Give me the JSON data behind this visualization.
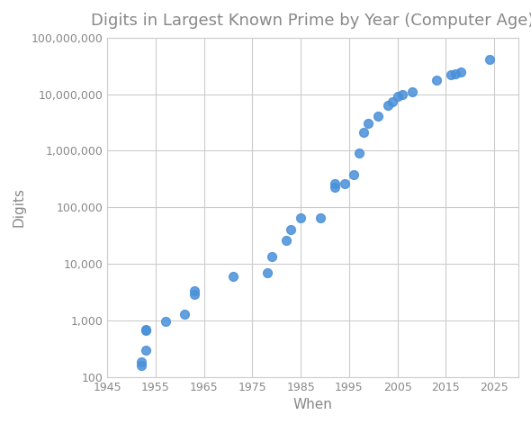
{
  "title": "Digits in Largest Known Prime by Year (Computer Age)",
  "xlabel": "When",
  "ylabel": "Digits",
  "background_color": "#ffffff",
  "grid_color": "#cccccc",
  "dot_color": "#4a90d9",
  "dot_size": 50,
  "xlim": [
    1945,
    2030
  ],
  "ylim_log": [
    100,
    100000000
  ],
  "xticks": [
    1945,
    1955,
    1965,
    1975,
    1985,
    1995,
    2005,
    2015,
    2025
  ],
  "yticks": [
    100,
    1000,
    10000,
    100000,
    1000000,
    10000000,
    100000000
  ],
  "ytick_labels": [
    "100",
    "1,000",
    "10,000",
    "100,000",
    "1,000,000",
    "10,000,000",
    "100,000,000"
  ],
  "title_color": "#888888",
  "label_color": "#888888",
  "tick_color": "#888888",
  "title_fontsize": 13,
  "label_fontsize": 11,
  "tick_fontsize": 9,
  "points": [
    [
      1952,
      157
    ],
    [
      1952,
      183
    ],
    [
      1953,
      295
    ],
    [
      1953,
      664
    ],
    [
      1953,
      687
    ],
    [
      1957,
      969
    ],
    [
      1961,
      1300
    ],
    [
      1963,
      2917
    ],
    [
      1963,
      3376
    ],
    [
      1971,
      6002
    ],
    [
      1978,
      6987
    ],
    [
      1979,
      13395
    ],
    [
      1982,
      25962
    ],
    [
      1983,
      39751
    ],
    [
      1985,
      65050
    ],
    [
      1989,
      65087
    ],
    [
      1992,
      227832
    ],
    [
      1992,
      258716
    ],
    [
      1994,
      258716
    ],
    [
      1996,
      378632
    ],
    [
      1997,
      895932
    ],
    [
      1998,
      2098960
    ],
    [
      1999,
      3021377
    ],
    [
      2001,
      4053946
    ],
    [
      2003,
      6320430
    ],
    [
      2004,
      7235733
    ],
    [
      2005,
      9152052
    ],
    [
      2006,
      9808358
    ],
    [
      2008,
      11185272
    ],
    [
      2013,
      17425170
    ],
    [
      2016,
      22338618
    ],
    [
      2017,
      23249425
    ],
    [
      2018,
      24862048
    ],
    [
      2024,
      41024320
    ]
  ]
}
